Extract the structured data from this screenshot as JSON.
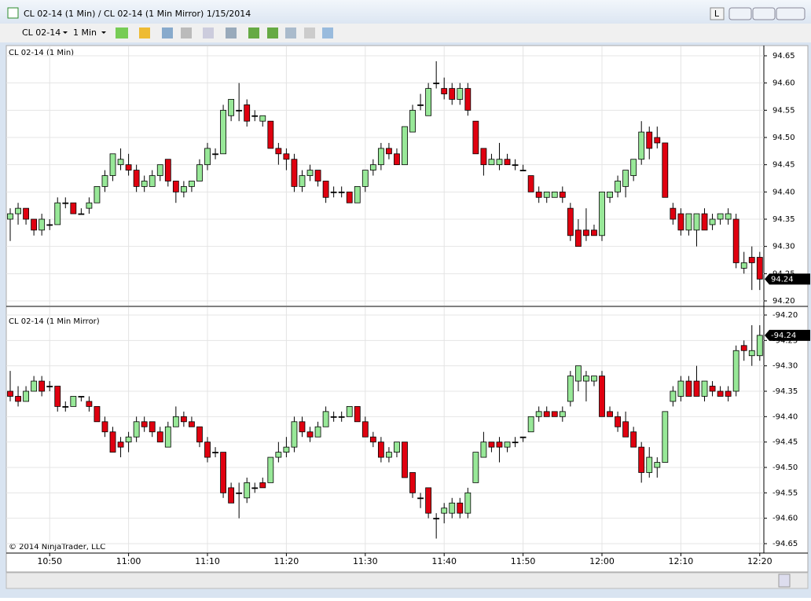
{
  "window": {
    "title": "CL 02-14 (1 Min) / CL 02-14 (1 Min Mirror)  1/15/2014",
    "button": "L"
  },
  "toolbar": {
    "instrument": "CL 02-14",
    "interval": "1 Min"
  },
  "copyright": "© 2014 NinjaTrader, LLC",
  "chart_data": [
    {
      "type": "candlestick",
      "title": "CL 02-14 (1 Min)",
      "up_color": "#98e898",
      "down_color": "#e00010",
      "grid": true,
      "ylim": [
        94.2,
        94.65
      ],
      "yticks": [
        {
          "value": 94.2,
          "label": "94.20"
        },
        94.25,
        {
          "value": 94.3,
          "label": "94.30"
        },
        94.35,
        {
          "value": 94.4,
          "label": "94.40"
        },
        94.45,
        {
          "value": 94.5,
          "label": "94.50"
        },
        94.55,
        {
          "value": 94.6,
          "label": "94.60"
        },
        94.65
      ],
      "open": [
        94.35,
        94.36,
        94.37,
        94.35,
        94.33,
        94.34,
        94.34,
        94.38,
        94.38,
        94.36,
        94.37,
        94.38,
        94.41,
        94.43,
        94.45,
        94.45,
        94.44,
        94.41,
        94.41,
        94.43,
        94.46,
        94.42,
        94.4,
        94.41,
        94.42,
        94.45,
        94.47,
        94.47,
        94.54,
        94.55,
        94.56,
        94.54,
        94.53,
        94.53,
        94.48,
        94.47,
        94.46,
        94.41,
        94.43,
        94.44,
        94.42,
        94.4,
        94.4,
        94.4,
        94.38,
        94.41,
        94.44,
        94.45,
        94.48,
        94.47,
        94.45,
        94.51,
        94.56,
        94.54,
        94.6,
        94.59,
        94.59,
        94.57,
        94.59,
        94.53,
        94.48,
        94.45,
        94.45,
        94.46,
        94.45,
        94.44,
        94.43,
        94.4,
        94.39,
        94.39,
        94.4,
        94.37,
        94.33,
        94.33,
        94.33,
        94.32,
        94.39,
        94.4,
        94.41,
        94.43,
        94.46,
        94.51,
        94.5,
        94.49,
        94.37,
        94.36,
        94.33,
        94.33,
        94.36,
        94.34,
        94.35,
        94.35,
        94.35,
        94.26,
        94.28,
        94.28
      ],
      "high": [
        94.37,
        94.38,
        94.37,
        94.35,
        94.36,
        94.35,
        94.39,
        94.39,
        94.38,
        94.37,
        94.39,
        94.41,
        94.44,
        94.47,
        94.48,
        94.47,
        94.45,
        94.43,
        94.44,
        94.45,
        94.46,
        94.42,
        94.42,
        94.42,
        94.46,
        94.49,
        94.48,
        94.56,
        94.57,
        94.6,
        94.57,
        94.55,
        94.54,
        94.53,
        94.49,
        94.48,
        94.47,
        94.44,
        94.45,
        94.44,
        94.42,
        94.41,
        94.41,
        94.4,
        94.41,
        94.44,
        94.46,
        94.49,
        94.49,
        94.48,
        94.52,
        94.56,
        94.58,
        94.6,
        94.64,
        94.61,
        94.6,
        94.6,
        94.6,
        94.53,
        94.48,
        94.47,
        94.49,
        94.47,
        94.46,
        94.45,
        94.43,
        94.41,
        94.4,
        94.4,
        94.41,
        94.38,
        94.35,
        94.37,
        94.34,
        94.4,
        94.4,
        94.43,
        94.44,
        94.46,
        94.53,
        94.52,
        94.52,
        94.49,
        94.38,
        94.37,
        94.36,
        94.36,
        94.37,
        94.36,
        94.36,
        94.37,
        94.36,
        94.29,
        94.3,
        94.29
      ],
      "low": [
        94.31,
        94.34,
        94.34,
        94.32,
        94.32,
        94.33,
        94.34,
        94.37,
        94.36,
        94.36,
        94.36,
        94.38,
        94.4,
        94.42,
        94.44,
        94.43,
        94.4,
        94.4,
        94.41,
        94.42,
        94.41,
        94.38,
        94.39,
        94.4,
        94.42,
        94.44,
        94.46,
        94.47,
        94.53,
        94.53,
        94.52,
        94.53,
        94.52,
        94.48,
        94.45,
        94.44,
        94.4,
        94.4,
        94.42,
        94.41,
        94.38,
        94.39,
        94.39,
        94.38,
        94.38,
        94.4,
        94.43,
        94.44,
        94.46,
        94.45,
        94.45,
        94.51,
        94.55,
        94.54,
        94.59,
        94.57,
        94.56,
        94.56,
        94.54,
        94.47,
        94.43,
        94.45,
        94.44,
        94.45,
        94.44,
        94.44,
        94.4,
        94.38,
        94.38,
        94.39,
        94.38,
        94.31,
        94.3,
        94.31,
        94.32,
        94.31,
        94.38,
        94.39,
        94.39,
        94.42,
        94.45,
        94.46,
        94.48,
        94.39,
        94.34,
        94.32,
        94.32,
        94.3,
        94.33,
        94.33,
        94.34,
        94.34,
        94.26,
        94.25,
        94.22,
        94.22
      ],
      "close": [
        94.36,
        94.37,
        94.35,
        94.33,
        94.35,
        94.34,
        94.38,
        94.38,
        94.36,
        94.36,
        94.38,
        94.41,
        94.43,
        94.47,
        94.46,
        94.44,
        94.41,
        94.42,
        94.43,
        94.45,
        94.42,
        94.4,
        94.41,
        94.42,
        94.45,
        94.48,
        94.47,
        94.55,
        94.57,
        94.55,
        94.53,
        94.54,
        94.54,
        94.48,
        94.47,
        94.46,
        94.41,
        94.43,
        94.44,
        94.42,
        94.39,
        94.4,
        94.4,
        94.38,
        94.41,
        94.44,
        94.45,
        94.48,
        94.47,
        94.45,
        94.52,
        94.55,
        94.56,
        94.59,
        94.6,
        94.58,
        94.57,
        94.59,
        94.55,
        94.47,
        94.45,
        94.46,
        94.46,
        94.45,
        94.45,
        94.44,
        94.4,
        94.39,
        94.4,
        94.4,
        94.39,
        94.32,
        94.3,
        94.32,
        94.32,
        94.4,
        94.4,
        94.42,
        94.44,
        94.46,
        94.51,
        94.48,
        94.49,
        94.39,
        94.35,
        94.33,
        94.36,
        94.36,
        94.33,
        94.35,
        94.36,
        94.36,
        94.27,
        94.27,
        94.27,
        94.24
      ]
    },
    {
      "type": "candlestick",
      "title": "CL 02-14 (1 Min Mirror)",
      "up_color": "#98e898",
      "down_color": "#e00010",
      "grid": true,
      "ylim": [
        -94.65,
        -94.2
      ],
      "yticks": [
        {
          "value": -94.2,
          "label": "-94.20"
        },
        -94.25,
        {
          "value": -94.3,
          "label": "-94.30"
        },
        -94.35,
        {
          "value": -94.4,
          "label": "-94.40"
        },
        -94.45,
        {
          "value": -94.5,
          "label": "-94.50"
        },
        -94.55,
        {
          "value": -94.6,
          "label": "-94.60"
        },
        -94.65
      ],
      "categories": [
        null,
        null,
        null,
        null,
        null,
        "10:50",
        null,
        null,
        null,
        null,
        null,
        null,
        null,
        null,
        null,
        "11:00",
        null,
        null,
        null,
        null,
        null,
        null,
        null,
        null,
        null,
        "11:10",
        null,
        null,
        null,
        null,
        null,
        null,
        null,
        null,
        null,
        "11:20",
        null,
        null,
        null,
        null,
        null,
        null,
        null,
        null,
        null,
        "11:30",
        null,
        null,
        null,
        null,
        null,
        null,
        null,
        null,
        null,
        "11:40",
        null,
        null,
        null,
        null,
        null,
        null,
        null,
        null,
        null,
        "11:50",
        null,
        null,
        null,
        null,
        null,
        null,
        null,
        null,
        null,
        "12:00",
        null,
        null,
        null,
        null,
        null,
        null,
        null,
        null,
        null,
        "12:10",
        null,
        null,
        null,
        null,
        null,
        null,
        null,
        null,
        null,
        "12:20"
      ],
      "open": [
        -94.35,
        -94.36,
        -94.37,
        -94.35,
        -94.33,
        -94.34,
        -94.34,
        -94.38,
        -94.38,
        -94.36,
        -94.37,
        -94.38,
        -94.41,
        -94.43,
        -94.45,
        -94.45,
        -94.44,
        -94.41,
        -94.41,
        -94.43,
        -94.46,
        -94.42,
        -94.4,
        -94.41,
        -94.42,
        -94.45,
        -94.47,
        -94.47,
        -94.54,
        -94.55,
        -94.56,
        -94.54,
        -94.53,
        -94.53,
        -94.48,
        -94.47,
        -94.46,
        -94.41,
        -94.43,
        -94.44,
        -94.42,
        -94.4,
        -94.4,
        -94.4,
        -94.38,
        -94.41,
        -94.44,
        -94.45,
        -94.48,
        -94.47,
        -94.45,
        -94.51,
        -94.56,
        -94.54,
        -94.6,
        -94.59,
        -94.59,
        -94.57,
        -94.59,
        -94.53,
        -94.48,
        -94.45,
        -94.45,
        -94.46,
        -94.45,
        -94.44,
        -94.43,
        -94.4,
        -94.39,
        -94.39,
        -94.4,
        -94.37,
        -94.33,
        -94.33,
        -94.33,
        -94.32,
        -94.39,
        -94.4,
        -94.41,
        -94.43,
        -94.46,
        -94.51,
        -94.5,
        -94.49,
        -94.37,
        -94.36,
        -94.33,
        -94.33,
        -94.36,
        -94.34,
        -94.35,
        -94.35,
        -94.35,
        -94.26,
        -94.28,
        -94.28
      ],
      "high": [
        -94.31,
        -94.34,
        -94.34,
        -94.32,
        -94.32,
        -94.33,
        -94.34,
        -94.37,
        -94.36,
        -94.36,
        -94.36,
        -94.38,
        -94.4,
        -94.42,
        -94.44,
        -94.43,
        -94.4,
        -94.4,
        -94.41,
        -94.42,
        -94.41,
        -94.38,
        -94.39,
        -94.4,
        -94.42,
        -94.44,
        -94.46,
        -94.47,
        -94.53,
        -94.53,
        -94.52,
        -94.53,
        -94.52,
        -94.48,
        -94.45,
        -94.44,
        -94.4,
        -94.4,
        -94.42,
        -94.41,
        -94.38,
        -94.39,
        -94.39,
        -94.38,
        -94.38,
        -94.4,
        -94.43,
        -94.44,
        -94.46,
        -94.45,
        -94.45,
        -94.51,
        -94.55,
        -94.54,
        -94.59,
        -94.57,
        -94.56,
        -94.56,
        -94.54,
        -94.47,
        -94.43,
        -94.45,
        -94.44,
        -94.45,
        -94.44,
        -94.44,
        -94.4,
        -94.38,
        -94.38,
        -94.39,
        -94.38,
        -94.31,
        -94.3,
        -94.31,
        -94.32,
        -94.31,
        -94.38,
        -94.39,
        -94.39,
        -94.42,
        -94.45,
        -94.46,
        -94.48,
        -94.39,
        -94.34,
        -94.32,
        -94.32,
        -94.3,
        -94.33,
        -94.33,
        -94.34,
        -94.34,
        -94.26,
        -94.25,
        -94.22,
        -94.22
      ],
      "low": [
        -94.37,
        -94.38,
        -94.37,
        -94.35,
        -94.36,
        -94.35,
        -94.39,
        -94.39,
        -94.38,
        -94.37,
        -94.39,
        -94.41,
        -94.44,
        -94.47,
        -94.48,
        -94.47,
        -94.45,
        -94.43,
        -94.44,
        -94.45,
        -94.46,
        -94.42,
        -94.42,
        -94.42,
        -94.46,
        -94.49,
        -94.48,
        -94.56,
        -94.57,
        -94.6,
        -94.57,
        -94.55,
        -94.54,
        -94.53,
        -94.49,
        -94.48,
        -94.47,
        -94.44,
        -94.45,
        -94.44,
        -94.42,
        -94.41,
        -94.41,
        -94.4,
        -94.41,
        -94.44,
        -94.46,
        -94.49,
        -94.49,
        -94.48,
        -94.52,
        -94.56,
        -94.58,
        -94.6,
        -94.64,
        -94.61,
        -94.6,
        -94.6,
        -94.6,
        -94.53,
        -94.48,
        -94.47,
        -94.49,
        -94.47,
        -94.46,
        -94.45,
        -94.43,
        -94.41,
        -94.4,
        -94.4,
        -94.41,
        -94.38,
        -94.35,
        -94.37,
        -94.34,
        -94.4,
        -94.4,
        -94.43,
        -94.44,
        -94.46,
        -94.53,
        -94.52,
        -94.52,
        -94.49,
        -94.38,
        -94.37,
        -94.36,
        -94.36,
        -94.37,
        -94.36,
        -94.36,
        -94.37,
        -94.36,
        -94.29,
        -94.3,
        -94.29
      ],
      "close": [
        -94.36,
        -94.37,
        -94.35,
        -94.33,
        -94.35,
        -94.34,
        -94.38,
        -94.38,
        -94.36,
        -94.36,
        -94.38,
        -94.41,
        -94.43,
        -94.47,
        -94.46,
        -94.44,
        -94.41,
        -94.42,
        -94.43,
        -94.45,
        -94.42,
        -94.4,
        -94.41,
        -94.42,
        -94.45,
        -94.48,
        -94.47,
        -94.55,
        -94.57,
        -94.55,
        -94.53,
        -94.54,
        -94.54,
        -94.48,
        -94.47,
        -94.46,
        -94.41,
        -94.43,
        -94.44,
        -94.42,
        -94.39,
        -94.4,
        -94.4,
        -94.38,
        -94.41,
        -94.44,
        -94.45,
        -94.48,
        -94.47,
        -94.45,
        -94.52,
        -94.55,
        -94.56,
        -94.59,
        -94.6,
        -94.58,
        -94.57,
        -94.59,
        -94.55,
        -94.47,
        -94.45,
        -94.46,
        -94.46,
        -94.45,
        -94.45,
        -94.44,
        -94.4,
        -94.39,
        -94.4,
        -94.4,
        -94.39,
        -94.32,
        -94.3,
        -94.32,
        -94.32,
        -94.4,
        -94.4,
        -94.42,
        -94.44,
        -94.46,
        -94.51,
        -94.48,
        -94.49,
        -94.39,
        -94.35,
        -94.33,
        -94.36,
        -94.36,
        -94.33,
        -94.35,
        -94.36,
        -94.36,
        -94.27,
        -94.27,
        -94.27,
        -94.24
      ]
    }
  ]
}
